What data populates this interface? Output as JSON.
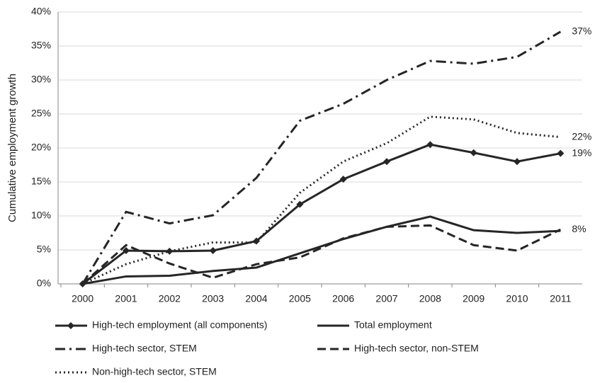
{
  "chart_data": {
    "type": "line",
    "y_axis_label": "Cumulative employment growth",
    "categories": [
      "2000",
      "2001",
      "2002",
      "2003",
      "2004",
      "2005",
      "2006",
      "2007",
      "2008",
      "2009",
      "2010",
      "2011"
    ],
    "ylim": [
      0,
      40
    ],
    "yticks": [
      {
        "value": 0,
        "label": "0%"
      },
      {
        "value": 5,
        "label": "5%"
      },
      {
        "value": 10,
        "label": "10%"
      },
      {
        "value": 15,
        "label": "15%"
      },
      {
        "value": 20,
        "label": "20%"
      },
      {
        "value": 25,
        "label": "25%"
      },
      {
        "value": 30,
        "label": "30%"
      },
      {
        "value": 35,
        "label": "35%"
      },
      {
        "value": 40,
        "label": "40%"
      }
    ],
    "grid": true,
    "series": [
      {
        "name": "High-tech employment (all components)",
        "color": "#262626",
        "style": "solid",
        "marker": "diamond",
        "values": [
          0,
          4.9,
          4.8,
          4.9,
          6.3,
          11.7,
          15.4,
          18.0,
          20.5,
          19.3,
          18.0,
          19.2
        ],
        "value_labels": [
          null,
          null,
          null,
          null,
          null,
          null,
          null,
          null,
          null,
          null,
          null,
          "19%"
        ]
      },
      {
        "name": "Total employment",
        "color": "#262626",
        "style": "solid",
        "marker": "none",
        "values": [
          0,
          1.1,
          1.2,
          1.9,
          2.4,
          4.5,
          6.6,
          8.4,
          9.9,
          7.9,
          7.5,
          7.8
        ]
      },
      {
        "name": "High-tech sector, STEM",
        "color": "#262626",
        "style": "dash-dot",
        "marker": "none",
        "values": [
          0,
          10.6,
          8.9,
          10.1,
          15.6,
          24.0,
          26.5,
          30.0,
          32.8,
          32.4,
          33.4,
          37.1
        ],
        "value_labels": [
          null,
          null,
          null,
          null,
          null,
          null,
          null,
          null,
          null,
          null,
          null,
          "37%"
        ]
      },
      {
        "name": "High-tech sector, non-STEM",
        "color": "#262626",
        "style": "dashed",
        "marker": "none",
        "values": [
          0,
          5.7,
          3.0,
          0.9,
          2.9,
          3.9,
          6.7,
          8.4,
          8.6,
          5.7,
          4.9,
          8.0
        ],
        "value_labels": [
          null,
          null,
          null,
          null,
          null,
          null,
          null,
          null,
          null,
          null,
          null,
          "8%"
        ]
      },
      {
        "name": "Non-high-tech sector, STEM",
        "color": "#262626",
        "style": "dotted",
        "marker": "none",
        "values": [
          0,
          2.9,
          4.8,
          6.1,
          6.1,
          13.4,
          18.0,
          20.7,
          24.6,
          24.2,
          22.2,
          21.6
        ],
        "value_labels": [
          null,
          null,
          null,
          null,
          null,
          null,
          null,
          null,
          null,
          null,
          null,
          "22%"
        ]
      }
    ]
  }
}
